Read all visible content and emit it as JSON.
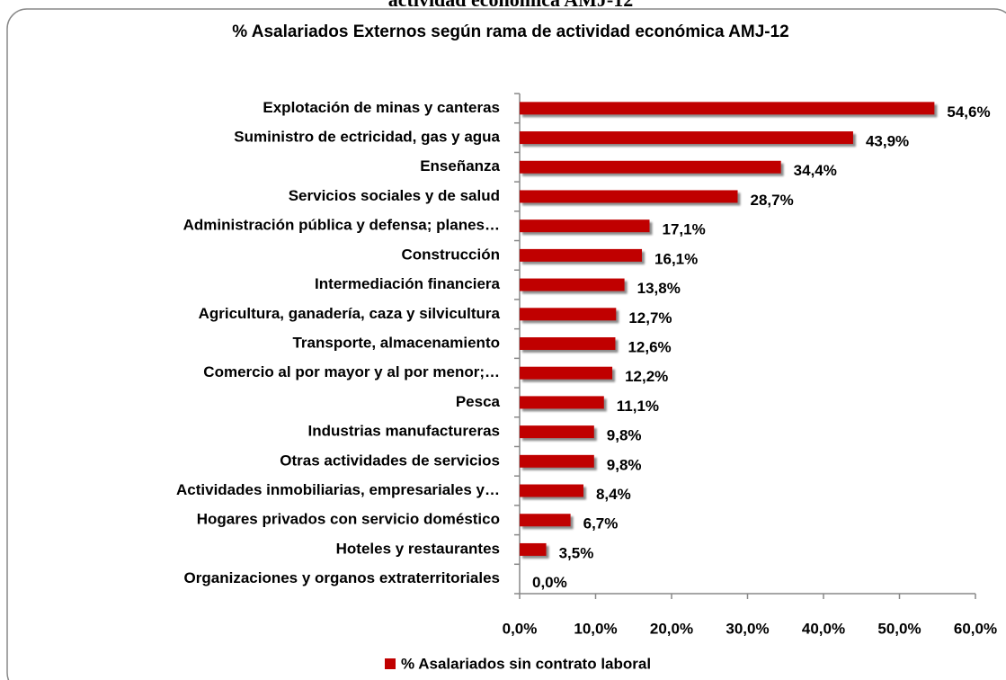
{
  "cropped_heading": "actividad económica AMJ-12",
  "chart_data": {
    "type": "barh",
    "title": "% Asalariados Externos según rama de actividad económica  AMJ-12",
    "categories": [
      "Explotación de minas y canteras",
      "Suministro de ectricidad, gas y agua",
      "Enseñanza",
      "Servicios sociales y de salud",
      "Administración pública y defensa; planes…",
      "Construcción",
      "Intermediación financiera",
      "Agricultura, ganadería, caza y silvicultura",
      "Transporte, almacenamiento",
      "Comercio al por mayor y al por menor;…",
      "Pesca",
      "Industrias manufactureras",
      "Otras actividades de servicios",
      "Actividades inmobiliarias, empresariales y…",
      "Hogares privados con servicio doméstico",
      "Hoteles y restaurantes",
      "Organizaciones y organos extraterritoriales"
    ],
    "series": [
      {
        "name": "% Asalariados sin contrato laboral",
        "color": "#c00000",
        "values": [
          54.6,
          43.9,
          34.4,
          28.7,
          17.1,
          16.1,
          13.8,
          12.7,
          12.6,
          12.2,
          11.1,
          9.8,
          9.8,
          8.4,
          6.7,
          3.5,
          0.0
        ],
        "value_labels": [
          "54,6%",
          "43,9%",
          "34,4%",
          "28,7%",
          "17,1%",
          "16,1%",
          "13,8%",
          "12,7%",
          "12,6%",
          "12,2%",
          "11,1%",
          "9,8%",
          "9,8%",
          "8,4%",
          "6,7%",
          "3,5%",
          "0,0%"
        ]
      }
    ],
    "xlim": [
      0,
      60
    ],
    "xticks": [
      {
        "value": 0,
        "label": "0,0%"
      },
      {
        "value": 10,
        "label": "10,0%"
      },
      {
        "value": 20,
        "label": "20,0%"
      },
      {
        "value": 30,
        "label": "30,0%"
      },
      {
        "value": 40,
        "label": "40,0%"
      },
      {
        "value": 50,
        "label": "50,0%"
      },
      {
        "value": 60,
        "label": "60,0%"
      }
    ],
    "grid": false,
    "legend": "bottom"
  }
}
